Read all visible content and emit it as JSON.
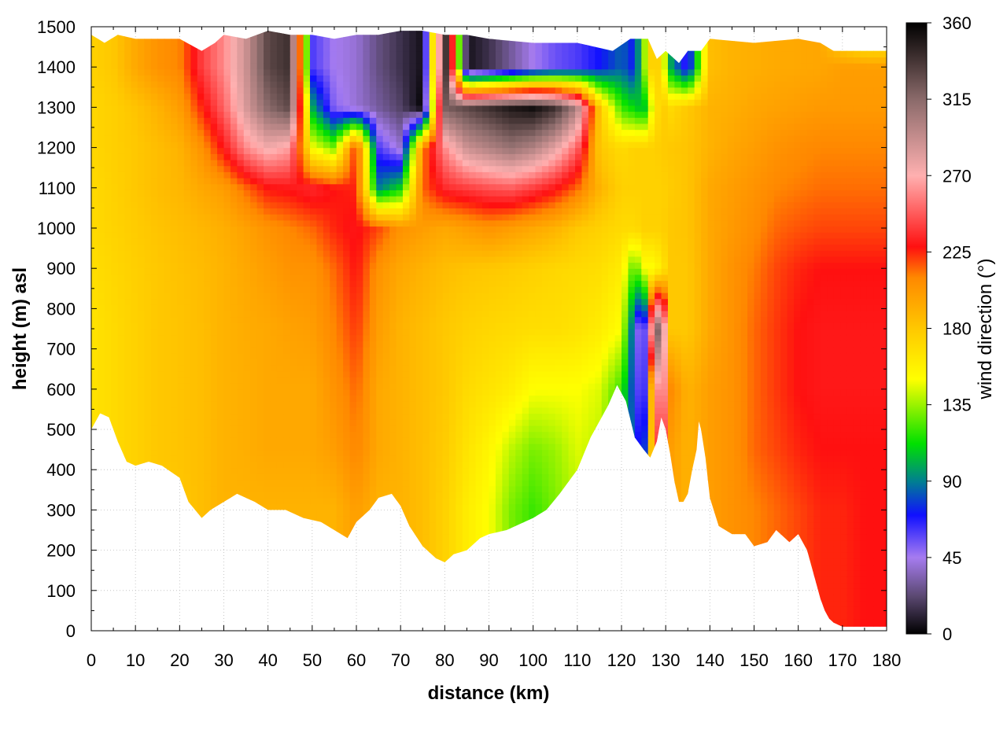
{
  "chart_data": {
    "type": "heatmap",
    "title": "",
    "xlabel": "distance (km)",
    "ylabel": "height (m) asl",
    "colorbar_label": "wind direction (°)",
    "xlim": [
      0,
      180
    ],
    "ylim": [
      0,
      1500
    ],
    "clim": [
      0,
      360
    ],
    "grid": true,
    "x_ticks": [
      "0",
      "10",
      "20",
      "30",
      "40",
      "50",
      "60",
      "70",
      "80",
      "90",
      "100",
      "110",
      "120",
      "130",
      "140",
      "150",
      "160",
      "170",
      "180"
    ],
    "y_ticks": [
      "0",
      "100",
      "200",
      "300",
      "400",
      "500",
      "600",
      "700",
      "800",
      "900",
      "1000",
      "1100",
      "1200",
      "1300",
      "1400",
      "1500"
    ],
    "colorbar_ticks": [
      "0",
      "45",
      "90",
      "135",
      "180",
      "225",
      "270",
      "315",
      "360"
    ],
    "colormap": [
      {
        "v": 0,
        "c": "#000000"
      },
      {
        "v": 22,
        "c": "#5a4870"
      },
      {
        "v": 45,
        "c": "#a67cf0"
      },
      {
        "v": 70,
        "c": "#1010ff"
      },
      {
        "v": 90,
        "c": "#008090"
      },
      {
        "v": 112,
        "c": "#00e000"
      },
      {
        "v": 150,
        "c": "#ffff00"
      },
      {
        "v": 180,
        "c": "#ffc800"
      },
      {
        "v": 210,
        "c": "#ff8800"
      },
      {
        "v": 228,
        "c": "#ff1010"
      },
      {
        "v": 270,
        "c": "#ffb0b0"
      },
      {
        "v": 315,
        "c": "#8a6a6a"
      },
      {
        "v": 360,
        "c": "#000000"
      }
    ],
    "terrain": {
      "x": [
        0,
        2,
        4,
        6,
        8,
        10,
        13,
        16,
        20,
        22,
        25,
        27,
        30,
        33,
        37,
        40,
        44,
        48,
        52,
        55,
        58,
        60,
        63,
        65,
        68,
        70,
        72,
        75,
        78,
        80,
        82,
        85,
        88,
        90,
        94,
        96,
        100,
        103,
        106,
        110,
        113,
        117,
        119,
        121,
        123,
        125,
        126.5,
        128,
        129,
        130,
        131,
        132,
        133,
        134,
        135,
        136,
        137,
        137.5,
        138,
        139,
        140,
        142,
        145,
        148,
        150,
        153,
        155,
        158,
        160,
        162,
        164,
        165,
        166,
        167,
        168,
        170,
        175,
        180
      ],
      "y": [
        500,
        540,
        530,
        470,
        420,
        410,
        420,
        410,
        380,
        320,
        280,
        300,
        320,
        340,
        320,
        300,
        300,
        280,
        270,
        250,
        230,
        270,
        300,
        330,
        340,
        310,
        260,
        210,
        180,
        170,
        190,
        200,
        230,
        240,
        250,
        260,
        280,
        300,
        340,
        400,
        480,
        560,
        610,
        570,
        480,
        450,
        430,
        470,
        530,
        500,
        440,
        370,
        320,
        320,
        340,
        400,
        450,
        520,
        500,
        430,
        330,
        260,
        240,
        240,
        210,
        220,
        250,
        220,
        240,
        200,
        120,
        80,
        50,
        30,
        20,
        10,
        10,
        10
      ]
    },
    "top_boundary": {
      "x": [
        0,
        3,
        6,
        10,
        15,
        20,
        25,
        28,
        30,
        35,
        40,
        45,
        50,
        55,
        60,
        65,
        70,
        75,
        80,
        85,
        90,
        100,
        110,
        118,
        122,
        126,
        128,
        130,
        133,
        135,
        138,
        140,
        150,
        160,
        165,
        168,
        170,
        175,
        180
      ],
      "y": [
        1480,
        1460,
        1480,
        1470,
        1470,
        1470,
        1440,
        1460,
        1480,
        1470,
        1490,
        1480,
        1480,
        1470,
        1480,
        1480,
        1490,
        1490,
        1480,
        1480,
        1470,
        1460,
        1460,
        1440,
        1470,
        1470,
        1420,
        1440,
        1410,
        1440,
        1440,
        1470,
        1460,
        1470,
        1460,
        1440,
        1440,
        1440,
        1440
      ]
    },
    "field": {
      "x": [
        0,
        5,
        10,
        15,
        20,
        25,
        30,
        35,
        40,
        45,
        50,
        55,
        60,
        65,
        70,
        75,
        80,
        85,
        90,
        95,
        100,
        105,
        110,
        115,
        120,
        123,
        125,
        127,
        129,
        131,
        135,
        140,
        145,
        150,
        155,
        160,
        165,
        170,
        175,
        180
      ],
      "y": [
        0,
        150,
        300,
        450,
        600,
        750,
        900,
        1000,
        1100,
        1200,
        1300,
        1400,
        1500
      ],
      "values": [
        [
          165,
          170,
          175,
          180,
          180,
          185,
          190,
          190,
          190,
          190,
          190,
          190,
          200,
          190,
          190,
          185,
          175,
          160,
          150,
          130,
          120,
          130,
          140,
          130,
          110,
          80,
          60,
          200,
          250,
          200,
          190,
          200,
          205,
          210,
          215,
          220,
          225,
          225,
          228,
          228
        ],
        [
          165,
          170,
          175,
          180,
          180,
          185,
          190,
          190,
          190,
          190,
          190,
          190,
          200,
          190,
          190,
          185,
          175,
          160,
          150,
          130,
          120,
          130,
          140,
          130,
          110,
          80,
          60,
          200,
          250,
          200,
          190,
          200,
          205,
          210,
          215,
          220,
          225,
          225,
          228,
          228
        ],
        [
          165,
          170,
          175,
          180,
          180,
          185,
          190,
          190,
          190,
          190,
          190,
          190,
          200,
          190,
          190,
          185,
          175,
          160,
          150,
          130,
          120,
          130,
          140,
          130,
          110,
          80,
          60,
          200,
          250,
          200,
          190,
          200,
          205,
          210,
          215,
          220,
          225,
          225,
          228,
          228
        ],
        [
          165,
          170,
          175,
          180,
          182,
          185,
          190,
          192,
          195,
          195,
          195,
          200,
          210,
          195,
          190,
          185,
          178,
          165,
          155,
          140,
          130,
          135,
          145,
          140,
          110,
          80,
          60,
          200,
          260,
          200,
          190,
          200,
          205,
          215,
          220,
          225,
          228,
          228,
          228,
          228
        ],
        [
          165,
          170,
          175,
          180,
          182,
          185,
          190,
          192,
          195,
          195,
          195,
          205,
          215,
          195,
          190,
          185,
          180,
          170,
          165,
          160,
          150,
          150,
          150,
          145,
          120,
          70,
          40,
          210,
          290,
          210,
          190,
          200,
          205,
          215,
          222,
          228,
          230,
          230,
          230,
          230
        ],
        [
          165,
          170,
          175,
          180,
          182,
          185,
          190,
          193,
          195,
          198,
          200,
          210,
          222,
          200,
          190,
          185,
          180,
          175,
          172,
          170,
          168,
          168,
          165,
          160,
          150,
          70,
          20,
          300,
          330,
          180,
          180,
          195,
          205,
          215,
          222,
          228,
          230,
          230,
          230,
          230
        ],
        [
          168,
          172,
          176,
          180,
          183,
          186,
          190,
          195,
          200,
          205,
          205,
          215,
          228,
          205,
          195,
          190,
          185,
          182,
          180,
          178,
          175,
          172,
          170,
          168,
          160,
          120,
          150,
          150,
          160,
          180,
          180,
          195,
          205,
          212,
          220,
          225,
          228,
          228,
          228,
          228
        ],
        [
          170,
          174,
          178,
          182,
          185,
          188,
          192,
          198,
          205,
          210,
          215,
          225,
          230,
          220,
          205,
          200,
          195,
          200,
          205,
          200,
          195,
          190,
          180,
          175,
          170,
          170,
          175,
          175,
          175,
          180,
          182,
          195,
          202,
          208,
          215,
          218,
          220,
          220,
          220,
          220
        ],
        [
          170,
          175,
          180,
          185,
          188,
          195,
          200,
          215,
          228,
          230,
          235,
          228,
          225,
          90,
          110,
          215,
          235,
          240,
          245,
          248,
          240,
          230,
          215,
          190,
          175,
          175,
          175,
          175,
          175,
          178,
          182,
          195,
          200,
          205,
          210,
          212,
          214,
          214,
          214,
          214
        ],
        [
          172,
          176,
          180,
          185,
          190,
          205,
          230,
          260,
          275,
          265,
          150,
          130,
          230,
          60,
          40,
          210,
          260,
          290,
          300,
          310,
          300,
          280,
          250,
          180,
          170,
          175,
          175,
          175,
          178,
          180,
          182,
          190,
          196,
          200,
          205,
          208,
          210,
          210,
          210,
          210
        ],
        [
          172,
          176,
          182,
          190,
          200,
          225,
          250,
          285,
          315,
          330,
          100,
          50,
          40,
          30,
          20,
          0,
          320,
          330,
          340,
          350,
          355,
          340,
          300,
          180,
          120,
          110,
          100,
          150,
          180,
          170,
          180,
          190,
          192,
          196,
          198,
          200,
          202,
          202,
          202,
          202
        ],
        [
          175,
          180,
          195,
          205,
          210,
          240,
          260,
          290,
          330,
          340,
          60,
          45,
          40,
          25,
          15,
          5,
          355,
          5,
          15,
          30,
          45,
          55,
          60,
          70,
          85,
          70,
          130,
          180,
          170,
          100,
          60,
          185,
          190,
          192,
          194,
          195,
          196,
          200,
          200,
          200
        ],
        [
          175,
          180,
          195,
          205,
          210,
          240,
          260,
          290,
          330,
          340,
          60,
          45,
          40,
          25,
          15,
          5,
          355,
          5,
          15,
          30,
          45,
          55,
          60,
          70,
          85,
          70,
          130,
          180,
          170,
          100,
          60,
          185,
          190,
          192,
          194,
          195,
          196,
          160,
          140,
          140
        ]
      ]
    }
  }
}
